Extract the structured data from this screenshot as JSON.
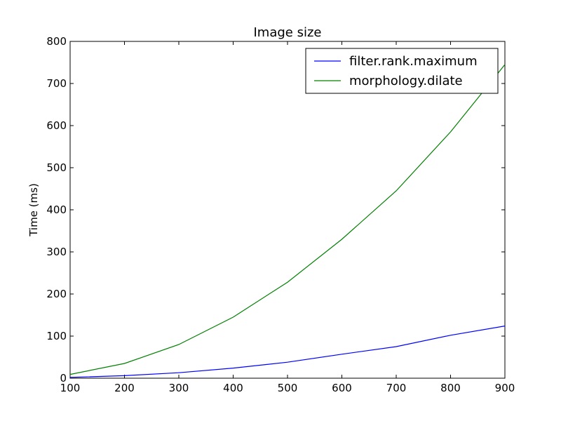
{
  "chart_data": {
    "type": "line",
    "title": "Image size",
    "xlabel": "",
    "ylabel": "Time (ms)",
    "xlim": [
      100,
      900
    ],
    "ylim": [
      0,
      800
    ],
    "xticks": [
      100,
      200,
      300,
      400,
      500,
      600,
      700,
      800,
      900
    ],
    "yticks": [
      0,
      100,
      200,
      300,
      400,
      500,
      600,
      700,
      800
    ],
    "grid": false,
    "legend_position": "top-right",
    "x": [
      100,
      200,
      300,
      400,
      500,
      600,
      700,
      800,
      900
    ],
    "series": [
      {
        "name": "filter.rank.maximum",
        "color": "#0000ff",
        "values": [
          2,
          6,
          13,
          24,
          38,
          57,
          75,
          102,
          124
        ]
      },
      {
        "name": "morphology.dilate",
        "color": "#008000",
        "values": [
          9,
          35,
          80,
          145,
          228,
          330,
          445,
          585,
          745
        ]
      }
    ]
  }
}
